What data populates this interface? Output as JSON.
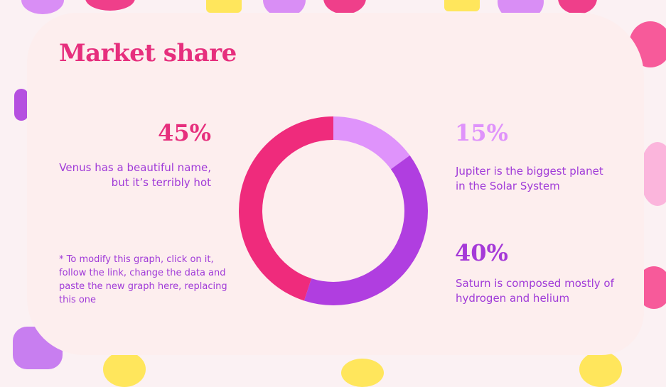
{
  "title": "Market share",
  "note": "* To modify this graph, click on it, follow the link, change the data and paste the new graph here, replacing this one",
  "chart_data": {
    "type": "pie",
    "donut": true,
    "start": "top",
    "direction": "clockwise",
    "categories": [
      "Jupiter",
      "Saturn",
      "Venus"
    ],
    "values": [
      15,
      40,
      45
    ],
    "colors": [
      "#df93fb",
      "#b03ee0",
      "#ef2b7c"
    ]
  },
  "items": [
    {
      "pct": "45%",
      "text": "Venus has a beautiful name, but it’s terribly hot",
      "color": "#e62f7d"
    },
    {
      "pct": "15%",
      "text": "Jupiter is the biggest planet in the Solar System",
      "color": "#df93fb"
    },
    {
      "pct": "40%",
      "text": "Saturn is composed mostly of hydrogen and helium",
      "color": "#a53ad8"
    }
  ]
}
